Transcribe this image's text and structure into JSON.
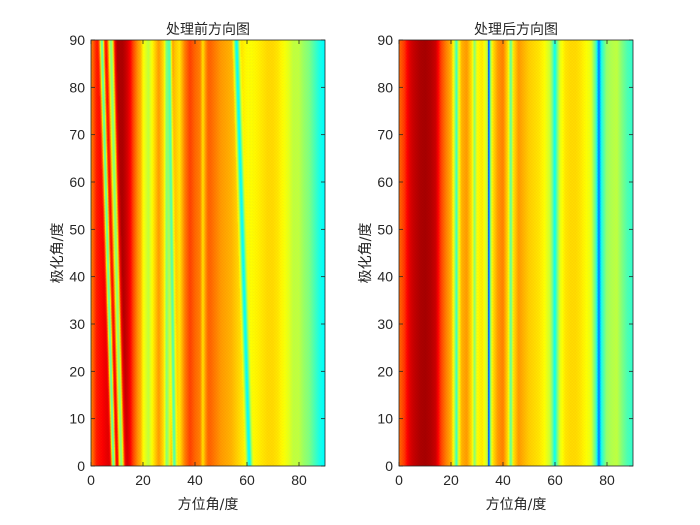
{
  "colors": {
    "colormap": [
      "#00008f",
      "#0000ff",
      "#00ffff",
      "#ffff00",
      "#ff0000",
      "#800000"
    ],
    "axis": "#262626",
    "background": "#ffffff"
  },
  "chart_data": [
    {
      "type": "heatmap",
      "title": "处理前方向图",
      "xlabel": "方位角/度",
      "ylabel": "极化角/度",
      "xlim": [
        0,
        90
      ],
      "ylim": [
        0,
        90
      ],
      "xticks": [
        0,
        20,
        40,
        60,
        80
      ],
      "yticks": [
        0,
        10,
        20,
        30,
        40,
        50,
        60,
        70,
        80,
        90
      ],
      "grid": false,
      "colorbar": false,
      "value_scale": [
        0,
        1
      ],
      "profile": {
        "x": [
          0,
          2,
          4,
          5,
          6,
          8,
          9,
          10,
          12,
          13,
          14,
          15,
          16,
          18,
          19,
          20,
          22,
          24,
          26,
          28,
          29,
          30,
          31,
          32,
          34,
          36,
          38,
          40,
          42,
          43,
          44,
          45,
          46,
          48,
          50,
          52,
          54,
          56,
          58,
          60,
          62,
          64,
          66,
          68,
          70,
          72,
          74,
          76,
          78,
          80,
          82,
          84,
          86,
          88,
          90
        ],
        "value": [
          0.7,
          0.78,
          0.8,
          0.82,
          0.84,
          0.86,
          0.9,
          0.93,
          0.93,
          0.9,
          0.86,
          0.8,
          0.75,
          0.68,
          0.66,
          0.6,
          0.55,
          0.62,
          0.68,
          0.62,
          0.5,
          0.56,
          0.7,
          0.65,
          0.62,
          0.7,
          0.75,
          0.72,
          0.7,
          0.62,
          0.68,
          0.72,
          0.72,
          0.7,
          0.68,
          0.67,
          0.66,
          0.64,
          0.62,
          0.6,
          0.6,
          0.61,
          0.62,
          0.63,
          0.63,
          0.62,
          0.6,
          0.58,
          0.55,
          0.55,
          0.52,
          0.5,
          0.46,
          0.42,
          0.4
        ]
      },
      "features": [
        {
          "x0": 11.5,
          "x1": 7.5,
          "width": 0.9,
          "value": 0.5
        },
        {
          "x0": 8.5,
          "x1": 4.0,
          "width": 0.6,
          "value": 0.46
        },
        {
          "x0": 32.0,
          "x1": 30.0,
          "width": 0.6,
          "value": 0.46
        },
        {
          "x0": 61.0,
          "x1": 56.0,
          "width": 0.7,
          "value": 0.4
        }
      ]
    },
    {
      "type": "heatmap",
      "title": "处理后方向图",
      "xlabel": "方位角/度",
      "ylabel": "极化角/度",
      "xlim": [
        0,
        90
      ],
      "ylim": [
        0,
        90
      ],
      "xticks": [
        0,
        20,
        40,
        60,
        80
      ],
      "yticks": [
        0,
        10,
        20,
        30,
        40,
        50,
        60,
        70,
        80,
        90
      ],
      "grid": false,
      "colorbar": false,
      "value_scale": [
        0,
        1
      ],
      "profile": {
        "x": [
          0,
          2,
          3,
          4,
          5,
          6,
          8,
          10,
          12,
          14,
          15,
          16,
          18,
          20,
          21,
          22,
          23,
          24,
          26,
          28,
          29,
          30,
          32,
          34,
          34.5,
          35,
          36,
          38,
          40,
          42,
          43,
          44,
          46,
          48,
          50,
          52,
          54,
          56,
          58,
          59,
          60,
          61,
          62,
          64,
          66,
          68,
          70,
          72,
          74,
          76,
          77,
          78,
          80,
          82,
          84,
          86,
          88,
          90
        ],
        "value": [
          0.72,
          0.76,
          0.8,
          0.85,
          0.88,
          0.9,
          0.93,
          0.94,
          0.92,
          0.88,
          0.8,
          0.75,
          0.7,
          0.66,
          0.58,
          0.44,
          0.6,
          0.66,
          0.68,
          0.62,
          0.5,
          0.6,
          0.62,
          0.55,
          0.15,
          0.5,
          0.62,
          0.68,
          0.7,
          0.62,
          0.46,
          0.62,
          0.68,
          0.66,
          0.64,
          0.63,
          0.62,
          0.6,
          0.56,
          0.5,
          0.4,
          0.5,
          0.58,
          0.62,
          0.63,
          0.63,
          0.62,
          0.6,
          0.58,
          0.45,
          0.28,
          0.42,
          0.52,
          0.54,
          0.55,
          0.5,
          0.46,
          0.44
        ]
      },
      "features": []
    }
  ]
}
